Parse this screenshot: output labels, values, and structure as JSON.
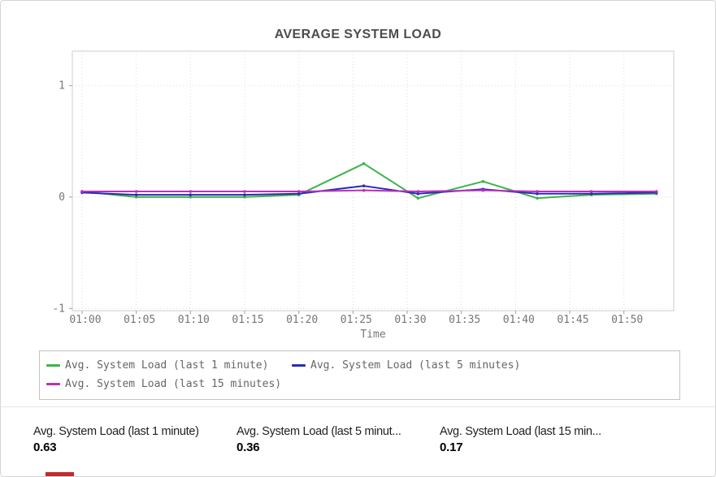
{
  "chart_data": {
    "type": "line",
    "title": "AVERAGE SYSTEM LOAD",
    "xlabel": "Time",
    "grid": true,
    "legend_position": "bottom",
    "ylim": [
      -1.02,
      1.31
    ],
    "xlim_minutes": [
      59.1,
      114.6
    ],
    "y_ticks": [
      {
        "label": "1",
        "value": 1
      },
      {
        "label": "0",
        "value": 0
      },
      {
        "label": "-1",
        "value": -1
      }
    ],
    "x_ticks": [
      {
        "label": "01:00",
        "minute": 60
      },
      {
        "label": "01:05",
        "minute": 65
      },
      {
        "label": "01:10",
        "minute": 70
      },
      {
        "label": "01:15",
        "minute": 75
      },
      {
        "label": "01:20",
        "minute": 80
      },
      {
        "label": "01:25",
        "minute": 85
      },
      {
        "label": "01:30",
        "minute": 90
      },
      {
        "label": "01:35",
        "minute": 95
      },
      {
        "label": "01:40",
        "minute": 100
      },
      {
        "label": "01:45",
        "minute": 105
      },
      {
        "label": "01:50",
        "minute": 110
      }
    ],
    "x_minutes": [
      60,
      65,
      70,
      75,
      80,
      86,
      91,
      97,
      102,
      107,
      113
    ],
    "series": [
      {
        "name": "Avg. System Load (last 1 minute)",
        "color": "#3cb44a",
        "values": [
          0.05,
          0.0,
          0.0,
          0.0,
          0.02,
          0.3,
          -0.01,
          0.14,
          -0.01,
          0.02,
          0.03
        ]
      },
      {
        "name": "Avg. System Load (last 5 minutes)",
        "color": "#2a2ab4",
        "values": [
          0.04,
          0.02,
          0.02,
          0.02,
          0.03,
          0.1,
          0.03,
          0.07,
          0.03,
          0.03,
          0.04
        ]
      },
      {
        "name": "Avg. System Load (last 15 minutes)",
        "color": "#bb30bb",
        "values": [
          0.05,
          0.05,
          0.05,
          0.05,
          0.05,
          0.06,
          0.05,
          0.06,
          0.05,
          0.05,
          0.05
        ]
      }
    ]
  },
  "stats": [
    {
      "label": "Avg. System Load (last 1 minute)",
      "value": "0.63"
    },
    {
      "label": "Avg. System Load (last 5 minut...",
      "value": "0.36"
    },
    {
      "label": "Avg. System Load (last 15 min...",
      "value": "0.17"
    }
  ],
  "colors": {
    "grid": "#dcdcdc",
    "plot_border": "#cccccc",
    "tick": "#a0a0a0",
    "tick_text": "#777777",
    "title_text": "#4d4d4d",
    "red_indicator": "#c42b2b"
  }
}
